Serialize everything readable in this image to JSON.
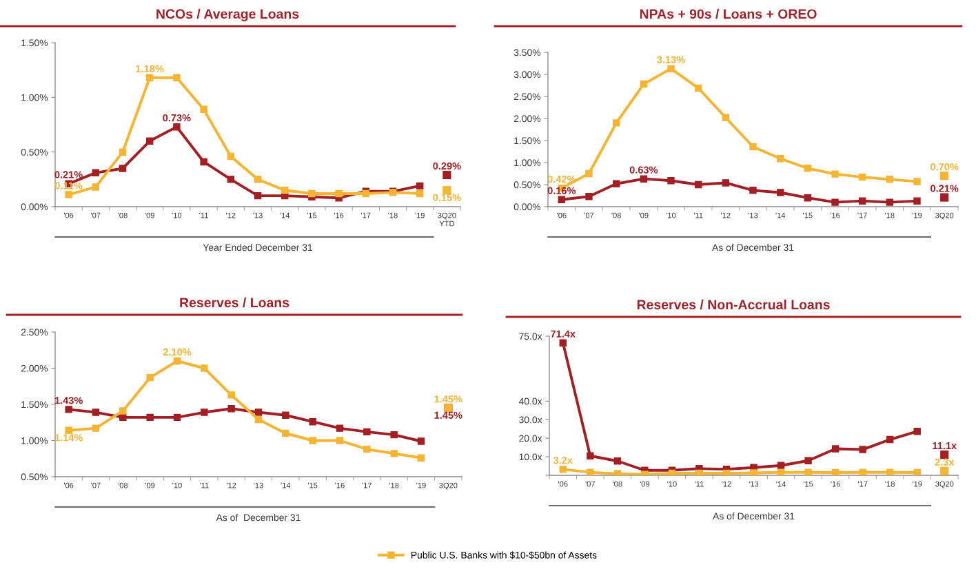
{
  "chart_data": [
    {
      "type": "line",
      "title": "NCOs / Average Loans",
      "xlabel": "Year Ended December 31",
      "categories": [
        "'06",
        "'07",
        "'08",
        "'09",
        "'10",
        "'11",
        "'12",
        "'13",
        "'14",
        "'15",
        "'16",
        "'17",
        "'18",
        "'19",
        "3Q20\nYTD"
      ],
      "ylim": [
        0,
        1.5
      ],
      "yticks": [
        {
          "value": 0,
          "label": "0.00%"
        },
        {
          "value": 0.5,
          "label": "0.50%"
        },
        {
          "value": 1,
          "label": "1.00%"
        },
        {
          "value": 1.5,
          "label": "1.50%"
        }
      ],
      "marker": "square",
      "line_style": "solid",
      "legend": "bottom",
      "series": [
        {
          "color": "#a31f24",
          "values": [
            0.21,
            0.31,
            0.35,
            0.6,
            0.73,
            0.41,
            0.25,
            0.1,
            0.1,
            0.09,
            0.08,
            0.14,
            0.14,
            0.19,
            null
          ],
          "value_labels": [
            "0.21%",
            null,
            null,
            null,
            "0.73%",
            null,
            null,
            null,
            null,
            null,
            null,
            null,
            null,
            null,
            null
          ]
        },
        {
          "name": "Public U.S. Banks with $10-$50bn of Assets",
          "color": "#f5b431",
          "values": [
            0.11,
            0.18,
            0.5,
            1.18,
            1.18,
            0.89,
            0.46,
            0.25,
            0.15,
            0.12,
            0.12,
            0.12,
            0.13,
            0.12,
            null
          ],
          "value_labels": [
            "0.11%",
            null,
            null,
            "1.18%",
            null,
            null,
            null,
            null,
            null,
            null,
            null,
            null,
            null,
            null,
            null
          ]
        },
        {
          "type": "scatter",
          "x": [
            "3Q20\nYTD"
          ],
          "color": "#a31f24",
          "values": [
            0.29
          ],
          "value_labels": [
            "0.29%"
          ]
        },
        {
          "type": "scatter",
          "x": [
            "3Q20\nYTD"
          ],
          "color": "#f5b431",
          "values": [
            0.15
          ],
          "value_labels": [
            "0.15%"
          ]
        }
      ]
    },
    {
      "type": "line",
      "title": "NPAs + 90s / Loans + OREO",
      "xlabel": "As of December 31",
      "categories": [
        "'06",
        "'07",
        "'08",
        "'09",
        "'10",
        "'11",
        "'12",
        "'13",
        "'14",
        "'15",
        "'16",
        "'17",
        "'18",
        "'19",
        "3Q20"
      ],
      "ylim": [
        0,
        3.5
      ],
      "yticks": [
        {
          "value": 0,
          "label": "0.00%"
        },
        {
          "value": 0.5,
          "label": "0.50%"
        },
        {
          "value": 1,
          "label": "1.00%"
        },
        {
          "value": 1.5,
          "label": "1.50%"
        },
        {
          "value": 2,
          "label": "2.00%"
        },
        {
          "value": 2.5,
          "label": "2.50%"
        },
        {
          "value": 3,
          "label": "3.00%"
        },
        {
          "value": 3.5,
          "label": "3.50%"
        }
      ],
      "marker": "square",
      "line_style": "solid",
      "legend": "bottom",
      "series": [
        {
          "color": "#a31f24",
          "values": [
            0.16,
            0.23,
            0.52,
            0.63,
            0.59,
            0.5,
            0.54,
            0.37,
            0.32,
            0.2,
            0.1,
            0.13,
            0.1,
            0.13,
            null
          ],
          "value_labels": [
            "0.16%",
            null,
            null,
            "0.63%",
            null,
            null,
            null,
            null,
            null,
            null,
            null,
            null,
            null,
            null,
            null
          ]
        },
        {
          "name": "Public U.S. Banks with $10-$50bn of Assets",
          "color": "#f5b431",
          "values": [
            0.42,
            0.75,
            1.9,
            2.78,
            3.13,
            2.69,
            2.02,
            1.36,
            1.09,
            0.87,
            0.74,
            0.67,
            0.62,
            0.57,
            null
          ],
          "value_labels": [
            "0.42%",
            null,
            null,
            null,
            "3.13%",
            null,
            null,
            null,
            null,
            null,
            null,
            null,
            null,
            null,
            null
          ]
        },
        {
          "type": "scatter",
          "x": [
            "3Q20"
          ],
          "color": "#a31f24",
          "values": [
            0.21
          ],
          "value_labels": [
            "0.21%"
          ]
        },
        {
          "type": "scatter",
          "x": [
            "3Q20"
          ],
          "color": "#f5b431",
          "values": [
            0.7
          ],
          "value_labels": [
            "0.70%"
          ]
        }
      ]
    },
    {
      "type": "line",
      "title": "Reserves / Loans",
      "xlabel": "As of  December 31",
      "categories": [
        "'06",
        "'07",
        "'08",
        "'09",
        "'10",
        "'11",
        "'12",
        "'13",
        "'14",
        "'15",
        "'16",
        "'17",
        "'18",
        "'19",
        "3Q20"
      ],
      "ylim": [
        0.5,
        2.5
      ],
      "yticks": [
        {
          "value": 0.5,
          "label": "0.50%"
        },
        {
          "value": 1,
          "label": "1.00%"
        },
        {
          "value": 1.5,
          "label": "1.50%"
        },
        {
          "value": 2,
          "label": "2.00%"
        },
        {
          "value": 2.5,
          "label": "2.50%"
        }
      ],
      "marker": "square",
      "line_style": "solid",
      "legend": "bottom",
      "series": [
        {
          "color": "#a31f24",
          "values": [
            1.43,
            1.39,
            1.32,
            1.32,
            1.32,
            1.39,
            1.44,
            1.39,
            1.35,
            1.26,
            1.17,
            1.12,
            1.08,
            0.99,
            null
          ],
          "value_labels": [
            "1.43%",
            null,
            null,
            null,
            null,
            null,
            null,
            null,
            null,
            null,
            null,
            null,
            null,
            null,
            null
          ]
        },
        {
          "name": "Public U.S. Banks with $10-$50bn of Assets",
          "color": "#f5b431",
          "values": [
            1.14,
            1.17,
            1.41,
            1.87,
            2.1,
            2.0,
            1.63,
            1.29,
            1.1,
            1.0,
            1.0,
            0.88,
            0.82,
            0.76,
            null
          ],
          "value_labels": [
            "1.14%",
            null,
            null,
            null,
            "2.10%",
            null,
            null,
            null,
            null,
            null,
            null,
            null,
            null,
            null,
            null
          ]
        },
        {
          "type": "scatter",
          "x": [
            "3Q20"
          ],
          "color": "#a31f24",
          "values": [
            1.45
          ],
          "value_labels": [
            "1.45%"
          ]
        },
        {
          "type": "scatter",
          "x": [
            "3Q20"
          ],
          "color": "#f5b431",
          "values": [
            1.45
          ],
          "value_labels": [
            "1.45%"
          ]
        }
      ]
    },
    {
      "type": "line",
      "title": "Reserves / Non-Accrual Loans",
      "xlabel": "As of December 31",
      "categories": [
        "'06",
        "'07",
        "'08",
        "'09",
        "'10",
        "'11",
        "'12",
        "'13",
        "'14",
        "'15",
        "'16",
        "'17",
        "'18",
        "'19",
        "3Q20"
      ],
      "ylim": [
        0,
        75
      ],
      "yticks": [
        {
          "value": 0,
          "label": null
        },
        {
          "value": 10,
          "label": "10.0x"
        },
        {
          "value": 20,
          "label": "20.0x"
        },
        {
          "value": 30,
          "label": "30.0x"
        },
        {
          "value": 40,
          "label": "40.0x"
        },
        {
          "value": 75,
          "label": "75.0x"
        }
      ],
      "marker": "square",
      "line_style": "solid",
      "legend": "bottom",
      "series": [
        {
          "color": "#a31f24",
          "values": [
            71.4,
            10.5,
            7.7,
            2.7,
            2.7,
            3.6,
            3.3,
            4.2,
            5.3,
            7.9,
            14.3,
            13.9,
            19.3,
            23.7,
            null
          ],
          "value_labels": [
            "71.4x",
            null,
            null,
            null,
            null,
            null,
            null,
            null,
            null,
            null,
            null,
            null,
            null,
            null,
            null
          ]
        },
        {
          "name": "Public U.S. Banks with $10-$50bn of Assets",
          "color": "#f5b431",
          "values": [
            3.2,
            1.6,
            0.9,
            0.5,
            1.1,
            1.1,
            1.1,
            1.3,
            1.6,
            1.6,
            1.5,
            1.6,
            1.6,
            1.5,
            null
          ],
          "value_labels": [
            "3.2x",
            null,
            null,
            null,
            null,
            null,
            null,
            null,
            null,
            null,
            null,
            null,
            null,
            null,
            null
          ]
        },
        {
          "type": "scatter",
          "x": [
            "3Q20"
          ],
          "color": "#a31f24",
          "values": [
            11.1
          ],
          "value_labels": [
            "11.1x"
          ]
        },
        {
          "type": "scatter",
          "x": [
            "3Q20"
          ],
          "color": "#f5b431",
          "values": [
            2.3
          ],
          "value_labels": [
            "2.3x"
          ]
        }
      ]
    }
  ]
}
